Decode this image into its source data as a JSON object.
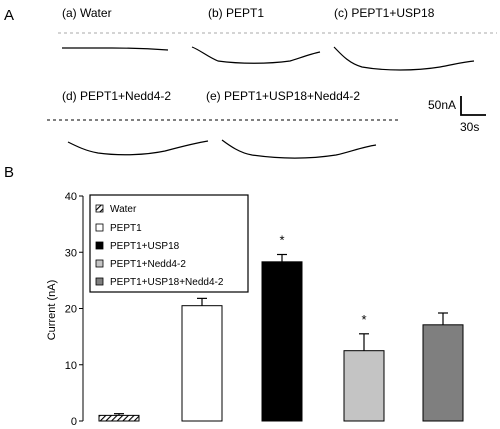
{
  "panel_a": {
    "label": "A",
    "traces": [
      {
        "label": "(a) Water"
      },
      {
        "label": "(b) PEPT1"
      },
      {
        "label": "(c) PEPT1+USP18"
      },
      {
        "label": "(d) PEPT1+Nedd4-2"
      },
      {
        "label": "(e) PEPT1+USP18+Nedd4-2"
      }
    ],
    "scale_bar": {
      "current": "50nA",
      "time": "30s"
    }
  },
  "panel_b": {
    "label": "B"
  },
  "chart_data": {
    "type": "bar",
    "ylabel": "Current (nA)",
    "ylim": [
      0,
      40
    ],
    "yticks": [
      0,
      10,
      20,
      30,
      40
    ],
    "legend_position": "top-left",
    "categories": [
      "Water",
      "PEPT1",
      "PEPT1+USP18",
      "PEPT1+Nedd4-2",
      "PEPT1+USP18+Nedd4-2"
    ],
    "values": [
      1.0,
      20.5,
      28.3,
      12.5,
      17.1
    ],
    "errors": [
      0.3,
      1.3,
      1.3,
      3.0,
      2.1
    ],
    "significance": [
      "",
      "",
      "*",
      "*",
      ""
    ],
    "colors": [
      "hatched",
      "#ffffff",
      "#000000",
      "#c4c4c4",
      "#7f7f7f"
    ]
  }
}
